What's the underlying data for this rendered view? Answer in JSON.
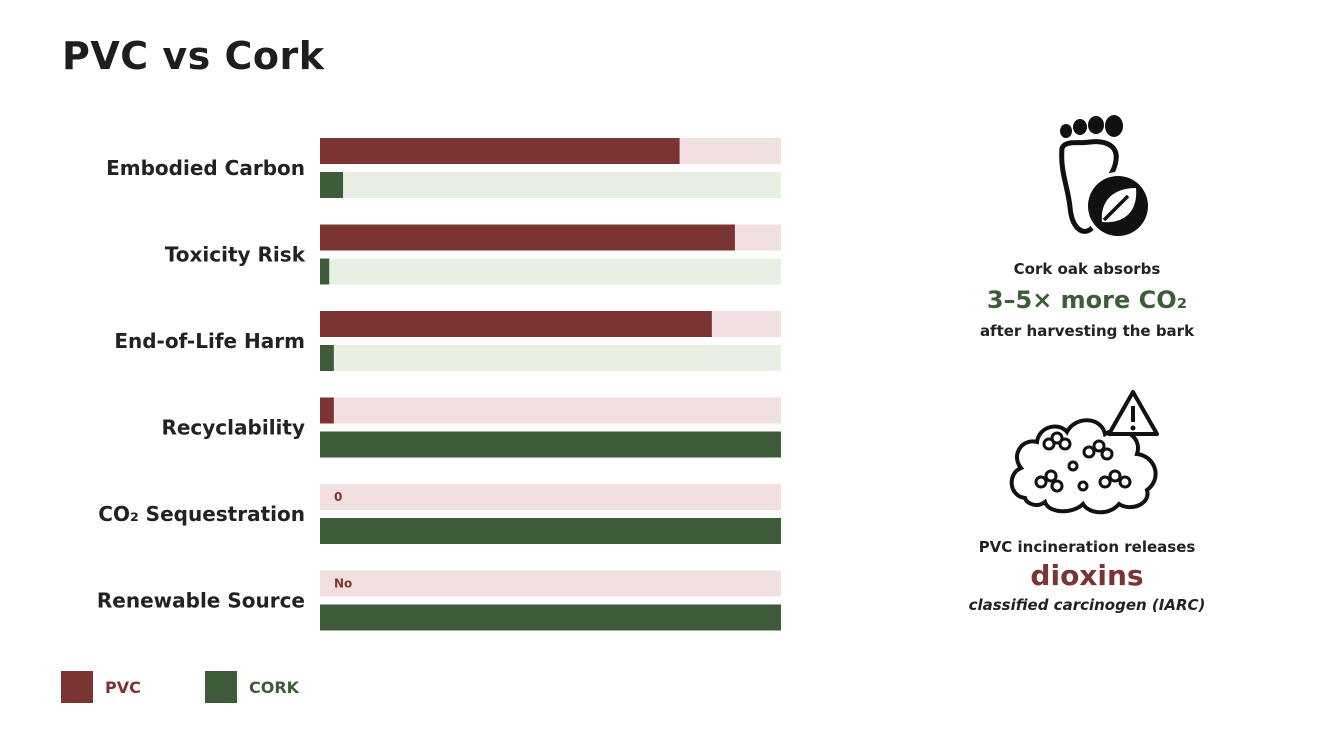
{
  "title": "PVC vs Cork",
  "colors": {
    "pvc": "#7b3432",
    "pvc_track": "#f2dfdf",
    "cork": "#3f5c3a",
    "cork_track": "#e8f0e3"
  },
  "chart_data": {
    "type": "bar",
    "orientation": "horizontal",
    "categories": [
      "Embodied Carbon",
      "Toxicity Risk",
      "End-of-Life Harm",
      "Recyclability",
      "CO₂ Sequestration",
      "Renewable Source"
    ],
    "series": [
      {
        "name": "PVC",
        "values": [
          78,
          90,
          85,
          3,
          0,
          0
        ],
        "value_labels": [
          "",
          "",
          "",
          "",
          "0",
          "No"
        ]
      },
      {
        "name": "CORK",
        "values": [
          5,
          2,
          3,
          100,
          100,
          100
        ],
        "value_labels": [
          "",
          "",
          "",
          "",
          "",
          ""
        ]
      }
    ],
    "xlim": [
      0,
      100
    ],
    "legend": "bottom-left",
    "grid": false
  },
  "legend": {
    "pvc_label": "PVC",
    "cork_label": "CORK"
  },
  "info": {
    "icon1": "footprint-leaf-icon",
    "line1": "Cork oak absorbs",
    "highlight1": "3–5× more CO₂",
    "line2": "after harvesting the bark",
    "icon2": "toxic-cloud-warning-icon",
    "line3": "PVC incineration releases",
    "highlight2": "dioxins",
    "line4": "classified carcinogen (IARC)"
  }
}
